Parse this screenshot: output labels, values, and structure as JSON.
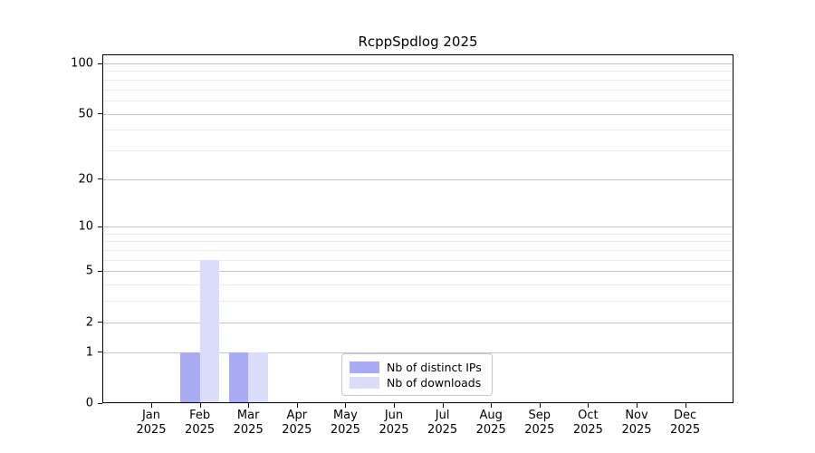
{
  "figure": {
    "background": "#ffffff"
  },
  "chart_data": {
    "type": "bar",
    "title": "RcppSpdlog 2025",
    "categories": [
      "Jan",
      "Feb",
      "Mar",
      "Apr",
      "May",
      "Jun",
      "Jul",
      "Aug",
      "Sep",
      "Oct",
      "Nov",
      "Dec"
    ],
    "x_year_label": "2025",
    "series": [
      {
        "name": "Nb of distinct IPs",
        "color": "#a9acf5",
        "values": [
          0,
          1,
          1,
          0,
          0,
          0,
          0,
          0,
          0,
          0,
          0,
          0
        ]
      },
      {
        "name": "Nb of downloads",
        "color": "#dadcf9",
        "values": [
          0,
          6,
          1,
          0,
          0,
          0,
          0,
          0,
          0,
          0,
          0,
          0
        ]
      }
    ],
    "xlabel": "",
    "ylabel": "",
    "y_scale": "log1p",
    "y_major_ticks": [
      0,
      1,
      2,
      5,
      10,
      20,
      50,
      100
    ],
    "y_minor_gridlines": [
      3,
      4,
      6,
      7,
      8,
      9,
      30,
      40,
      60,
      70,
      80,
      90
    ],
    "ylim": [
      0,
      113
    ],
    "grid": "horizontal",
    "legend_position": "inside-bottom-center"
  },
  "colors": {
    "grid_major": "#c6c6c6",
    "grid_minor": "#ececec",
    "axis": "#000000",
    "background": "#ffffff"
  }
}
